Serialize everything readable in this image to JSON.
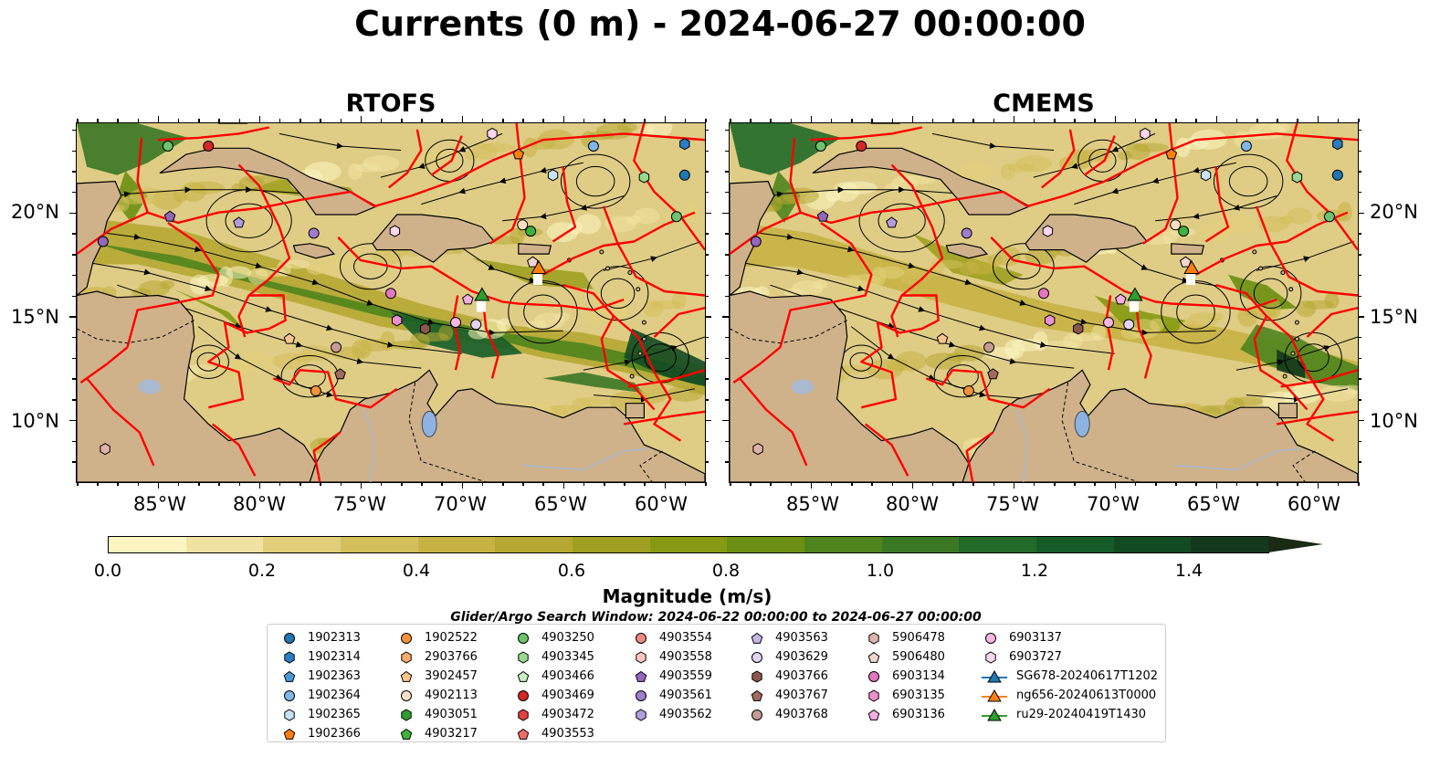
{
  "title": "Currents (0 m) - 2024-06-27 00:00:00",
  "panels": [
    {
      "title": "RTOFS"
    },
    {
      "title": "CMEMS"
    }
  ],
  "axes": {
    "lon_ticks": [
      "85°W",
      "80°W",
      "75°W",
      "70°W",
      "65°W",
      "60°W"
    ],
    "lat_ticks": [
      "20°N",
      "15°N",
      "10°N"
    ]
  },
  "colorbar": {
    "label": "Magnitude (m/s)",
    "ticks": [
      "0.0",
      "0.2",
      "0.4",
      "0.6",
      "0.8",
      "1.0",
      "1.2",
      "1.4"
    ],
    "levels": [
      "#fcf5c1",
      "#f0e3a2",
      "#e2cf7a",
      "#d4c05a",
      "#c7b344",
      "#b5a832",
      "#9fa021",
      "#859a12",
      "#6b8f12",
      "#4f841d",
      "#3a7823",
      "#216a28",
      "#155c28",
      "#124a22",
      "#14381c",
      "#1a2a14"
    ]
  },
  "search_window": "Glider/Argo Search Window: 2024-06-22 00:00:00 to 2024-06-27 00:00:00",
  "legend": [
    [
      {
        "label": "1902313",
        "marker": "circle",
        "color": "#1f77b4"
      },
      {
        "label": "1902314",
        "marker": "hexagon",
        "color": "#2a7dc4"
      },
      {
        "label": "1902363",
        "marker": "pentagon",
        "color": "#4a9ad6"
      },
      {
        "label": "1902364",
        "marker": "circle",
        "color": "#7fb8e8"
      },
      {
        "label": "1902365",
        "marker": "hexagon",
        "color": "#c6e4f7"
      },
      {
        "label": "1902366",
        "marker": "pentagon",
        "color": "#ff7f0e"
      }
    ],
    [
      {
        "label": "1902522",
        "marker": "circle",
        "color": "#f5913a"
      },
      {
        "label": "2903766",
        "marker": "hexagon",
        "color": "#fbac6a"
      },
      {
        "label": "3902457",
        "marker": "pentagon",
        "color": "#fcc58e"
      },
      {
        "label": "4902113",
        "marker": "circle",
        "color": "#fde0c2"
      },
      {
        "label": "4903051",
        "marker": "hexagon",
        "color": "#2ca02c"
      },
      {
        "label": "4903217",
        "marker": "pentagon",
        "color": "#3cb43c"
      }
    ],
    [
      {
        "label": "4903250",
        "marker": "circle",
        "color": "#6cc46c"
      },
      {
        "label": "4903345",
        "marker": "hexagon",
        "color": "#98d98e"
      },
      {
        "label": "4903466",
        "marker": "pentagon",
        "color": "#c9efc0"
      },
      {
        "label": "4903469",
        "marker": "circle",
        "color": "#d62728"
      },
      {
        "label": "4903472",
        "marker": "hexagon",
        "color": "#e04040"
      },
      {
        "label": "4903553",
        "marker": "pentagon",
        "color": "#f06a6a"
      }
    ],
    [
      {
        "label": "4903554",
        "marker": "circle",
        "color": "#f08a80"
      },
      {
        "label": "4903558",
        "marker": "hexagon",
        "color": "#fbc7c0"
      },
      {
        "label": "4903559",
        "marker": "pentagon",
        "color": "#9467bd"
      },
      {
        "label": "4903561",
        "marker": "circle",
        "color": "#a07bd0"
      },
      {
        "label": "4903562",
        "marker": "hexagon",
        "color": "#b39ddb"
      }
    ],
    [
      {
        "label": "4903563",
        "marker": "pentagon",
        "color": "#c7b5e6"
      },
      {
        "label": "4903629",
        "marker": "circle",
        "color": "#e2d5f2"
      },
      {
        "label": "4903766",
        "marker": "hexagon",
        "color": "#8c564b"
      },
      {
        "label": "4903767",
        "marker": "pentagon",
        "color": "#a06a5d"
      },
      {
        "label": "4903768",
        "marker": "circle",
        "color": "#c49c94"
      }
    ],
    [
      {
        "label": "5906478",
        "marker": "hexagon",
        "color": "#e0b3a8"
      },
      {
        "label": "5906480",
        "marker": "pentagon",
        "color": "#f3d6cd"
      },
      {
        "label": "6903134",
        "marker": "circle",
        "color": "#e377c2"
      },
      {
        "label": "6903135",
        "marker": "hexagon",
        "color": "#ec8fd0"
      },
      {
        "label": "6903136",
        "marker": "pentagon",
        "color": "#f5aee0"
      }
    ],
    [
      {
        "label": "6903137",
        "marker": "circle",
        "color": "#f7b6e3"
      },
      {
        "label": "6903727",
        "marker": "hexagon",
        "color": "#fbd6ef"
      },
      {
        "label": "SG678-20240617T1202",
        "marker": "triangle-line",
        "color": "#1f77b4"
      },
      {
        "label": "ng656-20240613T0000",
        "marker": "triangle-line",
        "color": "#ff7f0e"
      },
      {
        "label": "ru29-20240419T1430",
        "marker": "triangle-line",
        "color": "#2ca02c"
      }
    ]
  ],
  "map_colors": {
    "land": "#cfb28a",
    "track": "#ff0000",
    "lake": "#8fb3e0",
    "river": "#a9b9d0"
  },
  "map_markers": [
    {
      "lon": -84.5,
      "lat": 23.2,
      "color": "#6cc46c",
      "marker": "circle"
    },
    {
      "lon": -82.5,
      "lat": 23.2,
      "color": "#d62728",
      "marker": "circle"
    },
    {
      "lon": -84.4,
      "lat": 19.8,
      "color": "#9467bd",
      "marker": "pentagon"
    },
    {
      "lon": -81.0,
      "lat": 19.5,
      "color": "#b39ddb",
      "marker": "pentagon"
    },
    {
      "lon": -77.3,
      "lat": 19.0,
      "color": "#a07bd0",
      "marker": "circle"
    },
    {
      "lon": -87.7,
      "lat": 18.6,
      "color": "#9467bd",
      "marker": "circle"
    },
    {
      "lon": -73.3,
      "lat": 19.1,
      "color": "#fbd6ef",
      "marker": "hexagon"
    },
    {
      "lon": -67.0,
      "lat": 19.4,
      "color": "#fde0c2",
      "marker": "circle"
    },
    {
      "lon": -66.6,
      "lat": 19.1,
      "color": "#3cb43c",
      "marker": "circle"
    },
    {
      "lon": -63.5,
      "lat": 23.2,
      "color": "#7fb8e8",
      "marker": "circle"
    },
    {
      "lon": -65.5,
      "lat": 21.8,
      "color": "#c6e4f7",
      "marker": "hexagon"
    },
    {
      "lon": -61.0,
      "lat": 21.7,
      "color": "#98d98e",
      "marker": "hexagon"
    },
    {
      "lon": -59.0,
      "lat": 21.8,
      "color": "#1f77b4",
      "marker": "circle"
    },
    {
      "lon": -59.0,
      "lat": 23.3,
      "color": "#2a7dc4",
      "marker": "hexagon"
    },
    {
      "lon": -59.4,
      "lat": 19.8,
      "color": "#6cc46c",
      "marker": "circle"
    },
    {
      "lon": -67.2,
      "lat": 22.8,
      "color": "#ff7f0e",
      "marker": "pentagon"
    },
    {
      "lon": -68.5,
      "lat": 23.8,
      "color": "#fbd6ef",
      "marker": "hexagon"
    },
    {
      "lon": -66.5,
      "lat": 17.6,
      "color": "#f3d6cd",
      "marker": "pentagon"
    },
    {
      "lon": -73.5,
      "lat": 16.1,
      "color": "#e377c2",
      "marker": "circle"
    },
    {
      "lon": -73.2,
      "lat": 14.8,
      "color": "#ec8fd0",
      "marker": "hexagon"
    },
    {
      "lon": -71.8,
      "lat": 14.4,
      "color": "#8c564b",
      "marker": "hexagon"
    },
    {
      "lon": -76.2,
      "lat": 13.5,
      "color": "#c49c94",
      "marker": "circle"
    },
    {
      "lon": -76.0,
      "lat": 12.2,
      "color": "#a06a5d",
      "marker": "pentagon"
    },
    {
      "lon": -78.5,
      "lat": 13.9,
      "color": "#fcc58e",
      "marker": "pentagon"
    },
    {
      "lon": -77.2,
      "lat": 11.4,
      "color": "#f5913a",
      "marker": "circle"
    },
    {
      "lon": -70.3,
      "lat": 14.7,
      "color": "#f7b6e3",
      "marker": "circle"
    },
    {
      "lon": -69.3,
      "lat": 14.6,
      "color": "#e2d5f2",
      "marker": "circle"
    },
    {
      "lon": -69.7,
      "lat": 15.8,
      "color": "#f5aee0",
      "marker": "pentagon"
    },
    {
      "lon": -87.6,
      "lat": 8.6,
      "color": "#e0b3a8",
      "marker": "hexagon"
    }
  ],
  "map_triangles": [
    {
      "lon": -69.0,
      "lat": 16.0,
      "color": "#2ca02c"
    },
    {
      "lon": -66.2,
      "lat": 17.3,
      "color": "#ff7f0e"
    }
  ]
}
